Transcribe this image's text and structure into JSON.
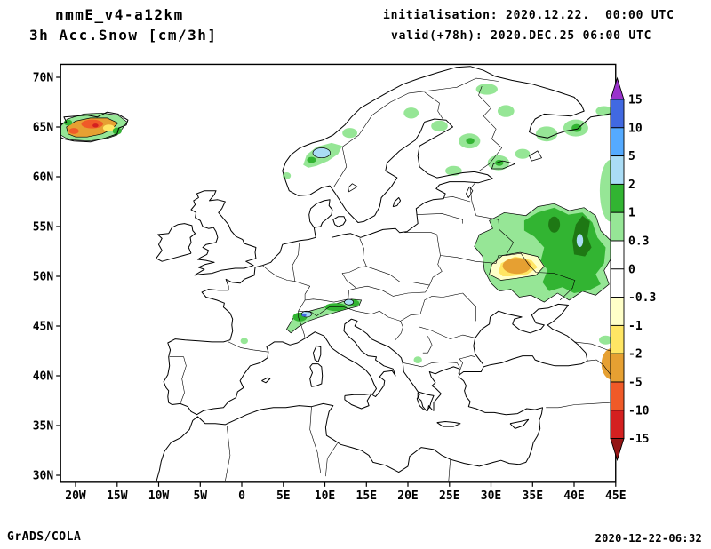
{
  "header": {
    "model": "nmmE_v4-a12km",
    "product": "3h Acc.Snow [cm/3h]",
    "initialisation": "initialisation: 2020.12.22.  00:00 UTC",
    "valid": "valid(+78h): 2020.DEC.25 06:00 UTC"
  },
  "footer": {
    "credit": "GrADS/COLA",
    "timestamp": "2020-12-22-06:32"
  },
  "chart_data": {
    "type": "map-contour",
    "variable": "3h Accumulated Snow",
    "units": "cm/3h",
    "projection": "latlon",
    "lon_range": [
      -21.8,
      45.0
    ],
    "lat_range": [
      29.3,
      71.3
    ],
    "lon_ticks": [
      {
        "value": -20,
        "label": "20W"
      },
      {
        "value": -15,
        "label": "15W"
      },
      {
        "value": -10,
        "label": "10W"
      },
      {
        "value": -5,
        "label": "5W"
      },
      {
        "value": 0,
        "label": "0"
      },
      {
        "value": 5,
        "label": "5E"
      },
      {
        "value": 10,
        "label": "10E"
      },
      {
        "value": 15,
        "label": "15E"
      },
      {
        "value": 20,
        "label": "20E"
      },
      {
        "value": 25,
        "label": "25E"
      },
      {
        "value": 30,
        "label": "30E"
      },
      {
        "value": 35,
        "label": "35E"
      },
      {
        "value": 40,
        "label": "40E"
      },
      {
        "value": 45,
        "label": "45E"
      }
    ],
    "lat_ticks": [
      {
        "value": 30,
        "label": "30N"
      },
      {
        "value": 35,
        "label": "35N"
      },
      {
        "value": 40,
        "label": "40N"
      },
      {
        "value": 45,
        "label": "45N"
      },
      {
        "value": 50,
        "label": "50N"
      },
      {
        "value": 55,
        "label": "55N"
      },
      {
        "value": 60,
        "label": "60N"
      },
      {
        "value": 65,
        "label": "65N"
      },
      {
        "value": 70,
        "label": "70N"
      }
    ],
    "colorbar": {
      "levels": [
        15,
        10,
        5,
        2,
        1,
        0.3,
        0,
        -0.3,
        -1,
        -2,
        -5,
        -10,
        -15
      ],
      "labels": [
        "15",
        "10",
        "5",
        "2",
        "1",
        "0.3",
        "0",
        "-0.3",
        "-1",
        "-2",
        "-5",
        "-10",
        "-15"
      ],
      "segment_colors": [
        "purple",
        "blue",
        "sky",
        "pale-blue",
        "green",
        "light-green",
        "white",
        "white",
        "cream",
        "yellow",
        "goldenrod",
        "orange-red",
        "red",
        "dark-red"
      ]
    },
    "palette": {
      "purple": "#9933cc",
      "blue": "#4169e1",
      "sky": "#55aaff",
      "pale-blue": "#aadcf5",
      "green": "#32b432",
      "light-green": "#96e696",
      "dark-green": "#1e7814",
      "white": "#ffffff",
      "cream": "#ffffc8",
      "yellow": "#ffe664",
      "goldenrod": "#e6a032",
      "orange-red": "#f05a28",
      "red": "#d42020",
      "dark-red": "#941616"
    },
    "regions": [
      {
        "shape": "polygon",
        "color": "light-green",
        "outline": true,
        "points": [
          [
            29.0,
            52.0
          ],
          [
            28.0,
            53.0
          ],
          [
            28.6,
            54.2
          ],
          [
            30.2,
            54.8
          ],
          [
            29.8,
            55.6
          ],
          [
            31.6,
            56.4
          ],
          [
            34.2,
            56.1
          ],
          [
            35.6,
            57.0
          ],
          [
            37.6,
            57.3
          ],
          [
            39.4,
            56.6
          ],
          [
            41.2,
            56.9
          ],
          [
            42.6,
            56.1
          ],
          [
            43.2,
            54.6
          ],
          [
            44.4,
            53.6
          ],
          [
            44.6,
            52.0
          ],
          [
            43.6,
            50.6
          ],
          [
            44.2,
            49.2
          ],
          [
            42.6,
            48.1
          ],
          [
            41.0,
            48.5
          ],
          [
            39.4,
            47.6
          ],
          [
            38.0,
            48.3
          ],
          [
            36.4,
            47.4
          ],
          [
            34.8,
            48.1
          ],
          [
            33.4,
            47.9
          ],
          [
            32.4,
            48.7
          ],
          [
            31.0,
            48.5
          ],
          [
            30.0,
            49.3
          ],
          [
            29.2,
            50.6
          ]
        ]
      },
      {
        "shape": "polygon",
        "color": "green",
        "points": [
          [
            34.0,
            55.6
          ],
          [
            35.6,
            56.4
          ],
          [
            37.6,
            56.9
          ],
          [
            39.3,
            56.2
          ],
          [
            41.0,
            56.4
          ],
          [
            42.2,
            55.4
          ],
          [
            42.8,
            53.9
          ],
          [
            43.8,
            52.9
          ],
          [
            43.6,
            51.3
          ],
          [
            42.6,
            50.2
          ],
          [
            43.2,
            49.2
          ],
          [
            41.8,
            48.6
          ],
          [
            40.0,
            48.3
          ],
          [
            38.6,
            48.9
          ],
          [
            37.0,
            48.5
          ],
          [
            36.2,
            49.4
          ],
          [
            36.8,
            50.6
          ],
          [
            36.0,
            51.6
          ],
          [
            36.4,
            52.9
          ],
          [
            35.2,
            54.0
          ],
          [
            34.0,
            54.6
          ]
        ]
      },
      {
        "shape": "polygon",
        "color": "dark-green",
        "points": [
          [
            40.0,
            52.2
          ],
          [
            39.8,
            53.6
          ],
          [
            40.2,
            55.2
          ],
          [
            41.0,
            56.1
          ],
          [
            41.9,
            55.5
          ],
          [
            41.6,
            54.0
          ],
          [
            42.1,
            52.9
          ],
          [
            41.3,
            52.0
          ]
        ]
      },
      {
        "shape": "ellipse",
        "color": "dark-green",
        "center": [
          37.6,
          55.2
        ],
        "rx": 0.7,
        "ry": 0.8
      },
      {
        "shape": "ellipse",
        "color": "pale-blue",
        "center": [
          40.7,
          53.6
        ],
        "rx": 0.4,
        "ry": 0.65
      },
      {
        "shape": "polygon",
        "color": "cream",
        "outline": true,
        "points": [
          [
            29.8,
            50.2
          ],
          [
            30.1,
            51.2
          ],
          [
            31.4,
            52.1
          ],
          [
            33.5,
            52.4
          ],
          [
            35.6,
            52.0
          ],
          [
            36.4,
            51.0
          ],
          [
            35.4,
            50.1
          ],
          [
            33.1,
            49.8
          ],
          [
            31.2,
            49.6
          ]
        ]
      },
      {
        "shape": "polygon",
        "color": "yellow",
        "points": [
          [
            30.9,
            50.4
          ],
          [
            31.2,
            51.3
          ],
          [
            32.9,
            52.0
          ],
          [
            34.9,
            51.6
          ],
          [
            35.6,
            50.9
          ],
          [
            34.4,
            50.2
          ],
          [
            32.3,
            50.0
          ],
          [
            31.4,
            50.0
          ]
        ]
      },
      {
        "shape": "ellipse",
        "color": "goldenrod",
        "center": [
          33.1,
          51.05
        ],
        "rx": 1.7,
        "ry": 0.8
      },
      {
        "shape": "ellipse",
        "color": "light-green",
        "center": [
          44.4,
          58.6
        ],
        "rx": 1.3,
        "ry": 3.1
      },
      {
        "shape": "polygon",
        "color": "light-green",
        "outline": true,
        "points": [
          [
            -21.8,
            64.2
          ],
          [
            -21.8,
            65.1
          ],
          [
            -21.0,
            65.8
          ],
          [
            -19.0,
            66.3
          ],
          [
            -16.8,
            66.4
          ],
          [
            -14.9,
            66.2
          ],
          [
            -13.8,
            65.5
          ],
          [
            -14.4,
            64.8
          ],
          [
            -15.0,
            64.2
          ],
          [
            -16.4,
            63.8
          ],
          [
            -18.4,
            63.6
          ],
          [
            -20.3,
            63.7
          ],
          [
            -21.2,
            63.9
          ]
        ]
      },
      {
        "shape": "polygon",
        "color": "goldenrod",
        "outline": true,
        "points": [
          [
            -20.9,
            64.3
          ],
          [
            -21.1,
            65.0
          ],
          [
            -20.0,
            65.6
          ],
          [
            -18.2,
            65.9
          ],
          [
            -16.2,
            65.9
          ],
          [
            -14.9,
            65.4
          ],
          [
            -15.6,
            64.8
          ],
          [
            -16.8,
            64.3
          ],
          [
            -18.6,
            64.0
          ],
          [
            -20.0,
            64.0
          ]
        ]
      },
      {
        "shape": "ellipse",
        "color": "orange-red",
        "center": [
          -18.0,
          65.3
        ],
        "rx": 1.3,
        "ry": 0.45
      },
      {
        "shape": "ellipse",
        "color": "orange-red",
        "center": [
          -20.2,
          64.6
        ],
        "rx": 0.6,
        "ry": 0.3
      },
      {
        "shape": "ellipse",
        "color": "yellow",
        "center": [
          -16.0,
          64.9
        ],
        "rx": 0.7,
        "ry": 0.35
      },
      {
        "shape": "ellipse",
        "color": "green",
        "center": [
          -15.0,
          64.6
        ],
        "rx": 0.55,
        "ry": 0.35
      },
      {
        "shape": "ellipse",
        "color": "green",
        "center": [
          -20.9,
          65.45
        ],
        "rx": 0.5,
        "ry": 0.3
      },
      {
        "shape": "ellipse",
        "color": "red",
        "center": [
          -17.6,
          65.15
        ],
        "rx": 0.35,
        "ry": 0.2
      },
      {
        "shape": "polygon",
        "color": "light-green",
        "points": [
          [
            7.4,
            61.2
          ],
          [
            7.8,
            62.2
          ],
          [
            9.0,
            63.0
          ],
          [
            10.8,
            63.4
          ],
          [
            12.1,
            63.1
          ],
          [
            11.6,
            62.3
          ],
          [
            10.4,
            61.6
          ],
          [
            9.0,
            61.1
          ],
          [
            8.0,
            60.9
          ]
        ]
      },
      {
        "shape": "ellipse",
        "color": "pale-blue",
        "outline": true,
        "center": [
          9.6,
          62.4
        ],
        "rx": 1.05,
        "ry": 0.5
      },
      {
        "shape": "ellipse",
        "color": "green",
        "center": [
          8.4,
          61.7
        ],
        "rx": 0.55,
        "ry": 0.3
      },
      {
        "shape": "polygon",
        "color": "light-green",
        "outline": true,
        "points": [
          [
            5.4,
            44.7
          ],
          [
            6.2,
            45.8
          ],
          [
            7.3,
            46.3
          ],
          [
            8.6,
            46.6
          ],
          [
            10.0,
            46.9
          ],
          [
            11.6,
            47.3
          ],
          [
            13.2,
            47.7
          ],
          [
            14.4,
            47.6
          ],
          [
            14.1,
            47.0
          ],
          [
            12.6,
            46.7
          ],
          [
            11.0,
            46.3
          ],
          [
            9.4,
            45.9
          ],
          [
            8.0,
            45.5
          ],
          [
            6.8,
            44.9
          ],
          [
            5.9,
            44.3
          ]
        ]
      },
      {
        "shape": "ellipse",
        "color": "green",
        "center": [
          7.0,
          45.9
        ],
        "rx": 0.85,
        "ry": 0.45
      },
      {
        "shape": "ellipse",
        "color": "green",
        "center": [
          11.3,
          46.9
        ],
        "rx": 1.3,
        "ry": 0.4
      },
      {
        "shape": "ellipse",
        "color": "green",
        "center": [
          13.4,
          47.3
        ],
        "rx": 0.75,
        "ry": 0.35
      },
      {
        "shape": "ellipse",
        "color": "pale-blue",
        "outline": true,
        "center": [
          7.8,
          46.2
        ],
        "rx": 0.6,
        "ry": 0.3
      },
      {
        "shape": "ellipse",
        "color": "pale-blue",
        "outline": true,
        "center": [
          12.9,
          47.4
        ],
        "rx": 0.55,
        "ry": 0.28
      },
      {
        "shape": "ellipse",
        "color": "blue",
        "center": [
          7.5,
          46.1
        ],
        "rx": 0.28,
        "ry": 0.16
      },
      {
        "shape": "ellipse",
        "color": "light-green",
        "center": [
          5.4,
          60.1
        ],
        "rx": 0.5,
        "ry": 0.35
      },
      {
        "shape": "ellipse",
        "color": "light-green",
        "center": [
          13.0,
          64.4
        ],
        "rx": 0.9,
        "ry": 0.5
      },
      {
        "shape": "ellipse",
        "color": "light-green",
        "center": [
          20.4,
          66.4
        ],
        "rx": 0.9,
        "ry": 0.55
      },
      {
        "shape": "ellipse",
        "color": "light-green",
        "center": [
          23.8,
          65.1
        ],
        "rx": 1.0,
        "ry": 0.55
      },
      {
        "shape": "ellipse",
        "color": "light-green",
        "center": [
          27.4,
          63.6
        ],
        "rx": 1.3,
        "ry": 0.75
      },
      {
        "shape": "ellipse",
        "color": "light-green",
        "center": [
          29.5,
          68.8
        ],
        "rx": 1.3,
        "ry": 0.55
      },
      {
        "shape": "ellipse",
        "color": "light-green",
        "center": [
          31.8,
          66.6
        ],
        "rx": 1.0,
        "ry": 0.6
      },
      {
        "shape": "ellipse",
        "color": "light-green",
        "center": [
          25.5,
          60.6
        ],
        "rx": 1.0,
        "ry": 0.5
      },
      {
        "shape": "ellipse",
        "color": "light-green",
        "center": [
          30.9,
          61.4
        ],
        "rx": 1.3,
        "ry": 0.75
      },
      {
        "shape": "ellipse",
        "color": "light-green",
        "center": [
          33.8,
          62.3
        ],
        "rx": 0.9,
        "ry": 0.5
      },
      {
        "shape": "ellipse",
        "color": "light-green",
        "center": [
          36.7,
          64.3
        ],
        "rx": 1.3,
        "ry": 0.75
      },
      {
        "shape": "ellipse",
        "color": "light-green",
        "center": [
          40.2,
          64.9
        ],
        "rx": 1.5,
        "ry": 0.85
      },
      {
        "shape": "ellipse",
        "color": "light-green",
        "center": [
          43.6,
          66.6
        ],
        "rx": 1.0,
        "ry": 0.5
      },
      {
        "shape": "ellipse",
        "color": "green",
        "center": [
          27.5,
          63.6
        ],
        "rx": 0.5,
        "ry": 0.3
      },
      {
        "shape": "ellipse",
        "color": "green",
        "center": [
          31.0,
          61.4
        ],
        "rx": 0.5,
        "ry": 0.3
      },
      {
        "shape": "ellipse",
        "color": "green",
        "center": [
          40.3,
          64.9
        ],
        "rx": 0.6,
        "ry": 0.4
      },
      {
        "shape": "ellipse",
        "color": "light-green",
        "center": [
          21.2,
          41.6
        ],
        "rx": 0.5,
        "ry": 0.35
      },
      {
        "shape": "ellipse",
        "color": "light-green",
        "center": [
          0.3,
          43.5
        ],
        "rx": 0.45,
        "ry": 0.3
      },
      {
        "shape": "ellipse",
        "color": "light-green",
        "center": [
          43.8,
          43.6
        ],
        "rx": 0.8,
        "ry": 0.45
      },
      {
        "shape": "ellipse",
        "color": "goldenrod",
        "center": [
          44.6,
          41.2
        ],
        "rx": 1.3,
        "ry": 1.6
      },
      {
        "shape": "ellipse",
        "color": "orange-red",
        "center": [
          44.9,
          41.0
        ],
        "rx": 0.5,
        "ry": 0.8
      }
    ]
  }
}
